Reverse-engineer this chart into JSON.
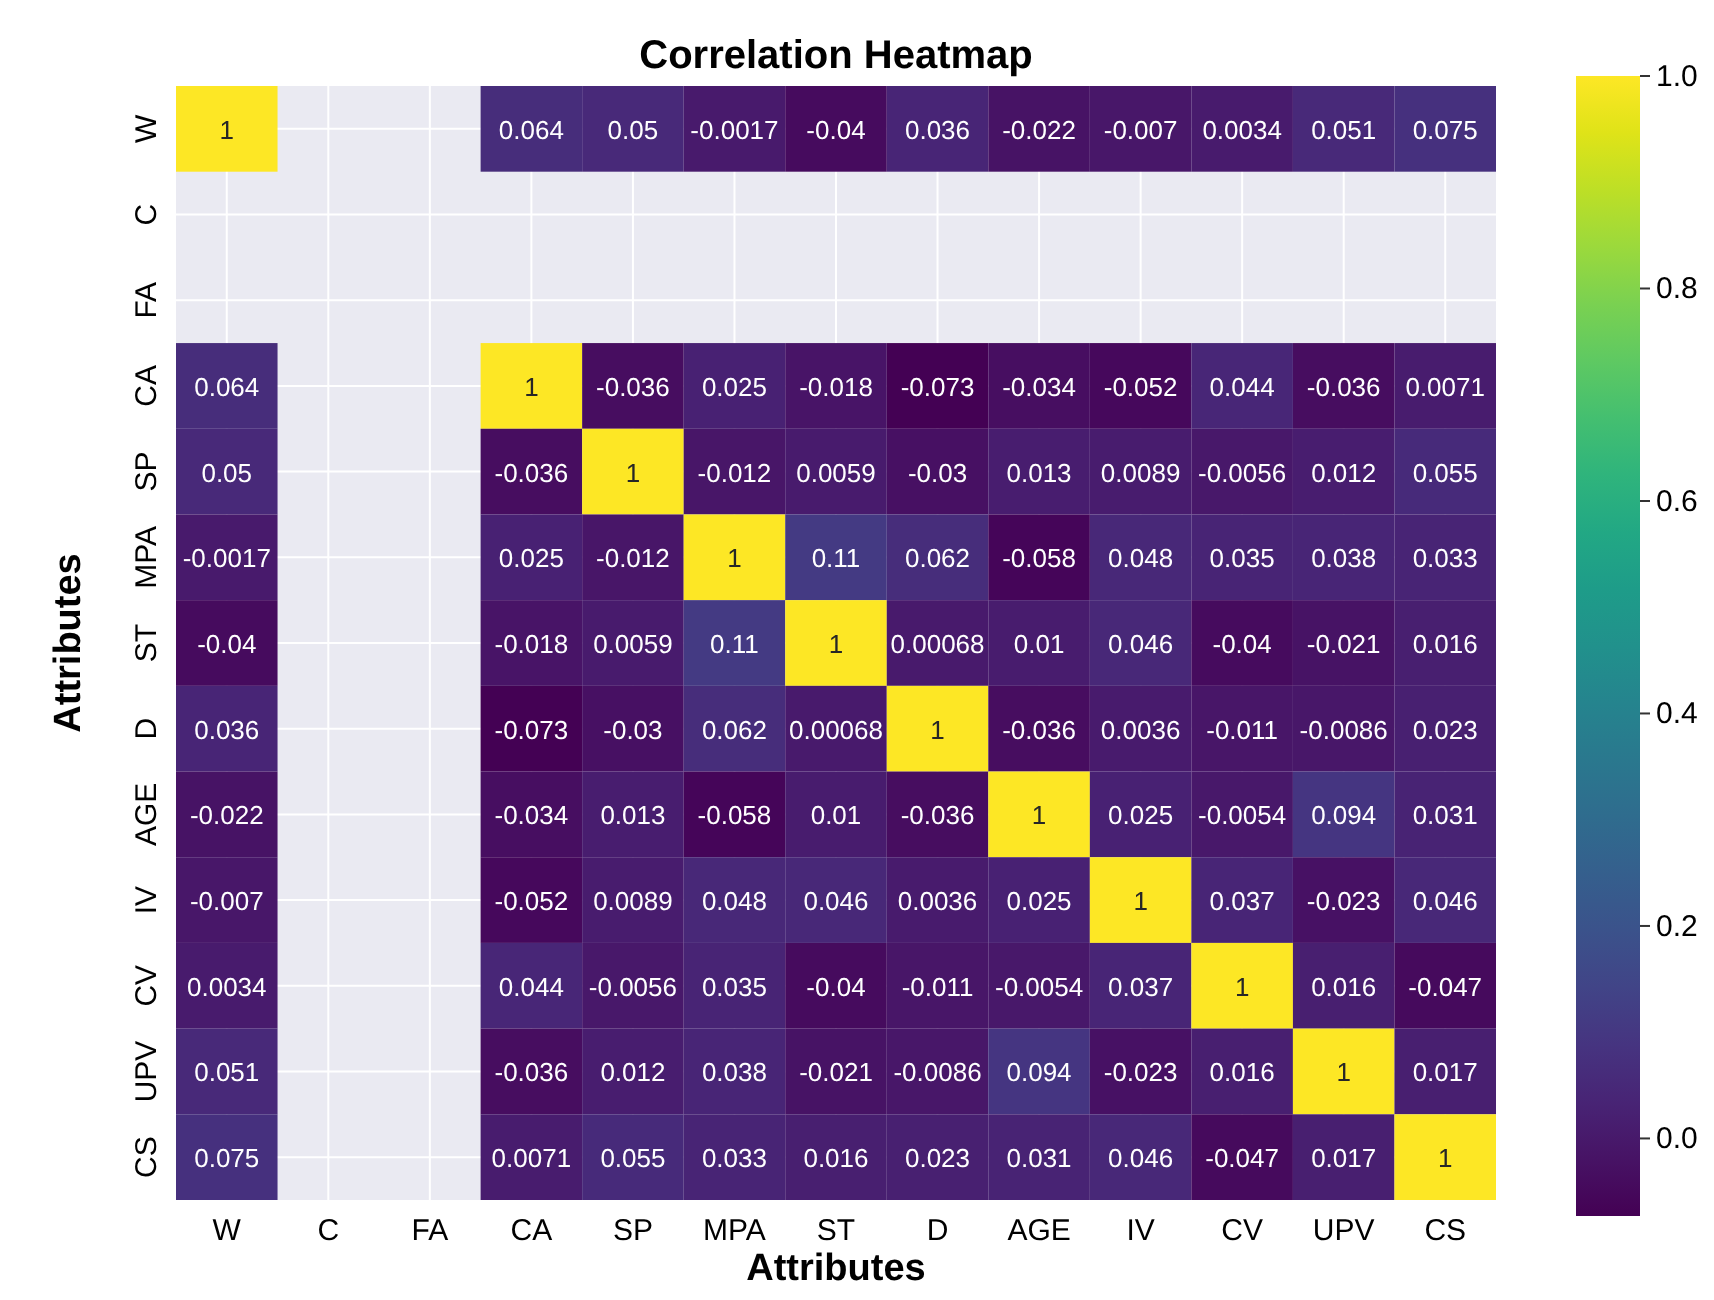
{
  "chart_data": {
    "type": "heatmap",
    "title": "Correlation Heatmap",
    "xlabel": "Attributes",
    "ylabel": "Attributes",
    "categories": [
      "W",
      "C",
      "FA",
      "CA",
      "SP",
      "MPA",
      "ST",
      "D",
      "AGE",
      "IV",
      "CV",
      "UPV",
      "CS"
    ],
    "y_categories": [
      "W",
      "C",
      "FA",
      "CA",
      "SP",
      "MPA",
      "ST",
      "D",
      "AGE",
      "IV",
      "CV",
      "UPV",
      "CS"
    ],
    "cells": [
      [
        1,
        null,
        null,
        0.064,
        0.05,
        -0.0017,
        -0.04,
        0.036,
        -0.022,
        -0.007,
        0.0034,
        0.051,
        0.075
      ],
      [
        null,
        null,
        null,
        null,
        null,
        null,
        null,
        null,
        null,
        null,
        null,
        null,
        null
      ],
      [
        null,
        null,
        null,
        null,
        null,
        null,
        null,
        null,
        null,
        null,
        null,
        null,
        null
      ],
      [
        0.064,
        null,
        null,
        1,
        -0.036,
        0.025,
        -0.018,
        -0.073,
        -0.034,
        -0.052,
        0.044,
        -0.036,
        0.0071
      ],
      [
        0.05,
        null,
        null,
        -0.036,
        1,
        -0.012,
        0.0059,
        -0.03,
        0.013,
        0.0089,
        -0.0056,
        0.012,
        0.055
      ],
      [
        -0.0017,
        null,
        null,
        0.025,
        -0.012,
        1,
        0.11,
        0.062,
        -0.058,
        0.048,
        0.035,
        0.038,
        0.033
      ],
      [
        -0.04,
        null,
        null,
        -0.018,
        0.0059,
        0.11,
        1,
        0.00068,
        0.01,
        0.046,
        -0.04,
        -0.021,
        0.016
      ],
      [
        0.036,
        null,
        null,
        -0.073,
        -0.03,
        0.062,
        0.00068,
        1,
        -0.036,
        0.0036,
        -0.011,
        -0.0086,
        0.023
      ],
      [
        -0.022,
        null,
        null,
        -0.034,
        0.013,
        -0.058,
        0.01,
        -0.036,
        1,
        0.025,
        -0.0054,
        0.094,
        0.031
      ],
      [
        -0.007,
        null,
        null,
        -0.052,
        0.0089,
        0.048,
        0.046,
        0.0036,
        0.025,
        1,
        0.037,
        -0.023,
        0.046
      ],
      [
        0.0034,
        null,
        null,
        0.044,
        -0.0056,
        0.035,
        -0.04,
        -0.011,
        -0.0054,
        0.037,
        1,
        0.016,
        -0.047
      ],
      [
        0.051,
        null,
        null,
        -0.036,
        0.012,
        0.038,
        -0.021,
        -0.0086,
        0.094,
        -0.023,
        0.016,
        1,
        0.017
      ],
      [
        0.075,
        null,
        null,
        0.0071,
        0.055,
        0.033,
        0.016,
        0.023,
        0.031,
        0.046,
        -0.047,
        0.017,
        1
      ]
    ],
    "clim": [
      -0.073,
      1
    ],
    "cticks": [
      {
        "value": 0,
        "label": "0.0"
      },
      {
        "value": 0.2,
        "label": "0.2"
      },
      {
        "value": 0.4,
        "label": "0.4"
      },
      {
        "value": 0.6,
        "label": "0.6"
      },
      {
        "value": 0.8,
        "label": "0.8"
      },
      {
        "value": 1,
        "label": "1.0"
      }
    ],
    "data_labels": true,
    "grid": true
  }
}
